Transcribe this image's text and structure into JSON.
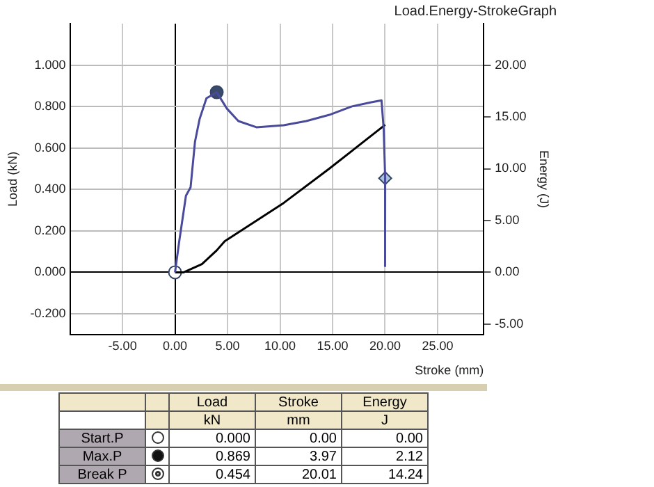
{
  "chart_data": {
    "type": "line",
    "title": "Load.Energy-StrokeGraph",
    "xlabel": "Stroke (mm)",
    "ylabel": "Load (kN)",
    "y2label": "Energy (J)",
    "xlim": [
      -10,
      29.4
    ],
    "xticks": [
      {
        "value": -5,
        "label": "-5.00"
      },
      {
        "value": 0,
        "label": "0.00"
      },
      {
        "value": 5,
        "label": "5.00"
      },
      {
        "value": 10,
        "label": "10.00"
      },
      {
        "value": 15,
        "label": "15.00"
      },
      {
        "value": 20,
        "label": "20.00"
      },
      {
        "value": 25,
        "label": "25.00"
      }
    ],
    "ylim": [
      -0.3,
      1.2
    ],
    "yticks": [
      {
        "value": -0.2,
        "label": "-0.200"
      },
      {
        "value": 0,
        "label": "0.000"
      },
      {
        "value": 0.2,
        "label": "0.200"
      },
      {
        "value": 0.4,
        "label": "0.400"
      },
      {
        "value": 0.6,
        "label": "0.600"
      },
      {
        "value": 0.8,
        "label": "0.800"
      },
      {
        "value": 1,
        "label": "1.000"
      }
    ],
    "y2lim": [
      -6,
      24
    ],
    "y2ticks": [
      {
        "value": -5,
        "label": "-5.00"
      },
      {
        "value": 0,
        "label": "0.00"
      },
      {
        "value": 5,
        "label": "5.00"
      },
      {
        "value": 10,
        "label": "10.00"
      },
      {
        "value": 15,
        "label": "15.00"
      },
      {
        "value": 20,
        "label": "20.00"
      }
    ],
    "grid": true,
    "legend": false,
    "marker": "none",
    "line_style": "solid",
    "series": [
      {
        "color": "#4a4a9a",
        "x": [
          0,
          0.4,
          1.04,
          1.48,
          1.9,
          2.34,
          2.99,
          3.97,
          4.94,
          6.03,
          7.75,
          10.35,
          12.5,
          14.7,
          16.8,
          18.6,
          19.66,
          19.87,
          20.01,
          20.0
        ],
        "values": [
          0,
          0.15,
          0.37,
          0.41,
          0.63,
          0.74,
          0.84,
          0.869,
          0.79,
          0.73,
          0.7,
          0.71,
          0.73,
          0.76,
          0.8,
          0.82,
          0.83,
          0.69,
          0.454,
          0.03
        ]
      },
      {
        "type": "line",
        "axis": "y2",
        "color": "#000000",
        "x": [
          0,
          0.83,
          2.56,
          3.97,
          4.73,
          10.35,
          14.68,
          20.01
        ],
        "values": [
          0,
          0,
          0.8,
          2.12,
          3,
          6.7,
          10,
          14.24
        ]
      },
      {
        "type": "scatter",
        "marker": "circle",
        "color": "#ffffff",
        "x": [
          0
        ],
        "values": [
          0
        ]
      },
      {
        "type": "scatter",
        "marker": "circle",
        "color": "#3a4a6a",
        "x": [
          3.97
        ],
        "values": [
          0.869
        ]
      },
      {
        "type": "scatter",
        "marker": "diamond",
        "color": "#a8c4dc",
        "x": [
          20.01
        ],
        "values": [
          0.454
        ]
      }
    ],
    "annotations": [
      "Load",
      "Stroke",
      "Energy",
      "kN",
      "mm",
      "J",
      "Start.P",
      "0.000",
      "0.00",
      "0.00",
      "Max.P",
      "0.869",
      "3.97",
      "2.12",
      "Break P",
      "0.454",
      "20.01",
      "14.24"
    ]
  }
}
